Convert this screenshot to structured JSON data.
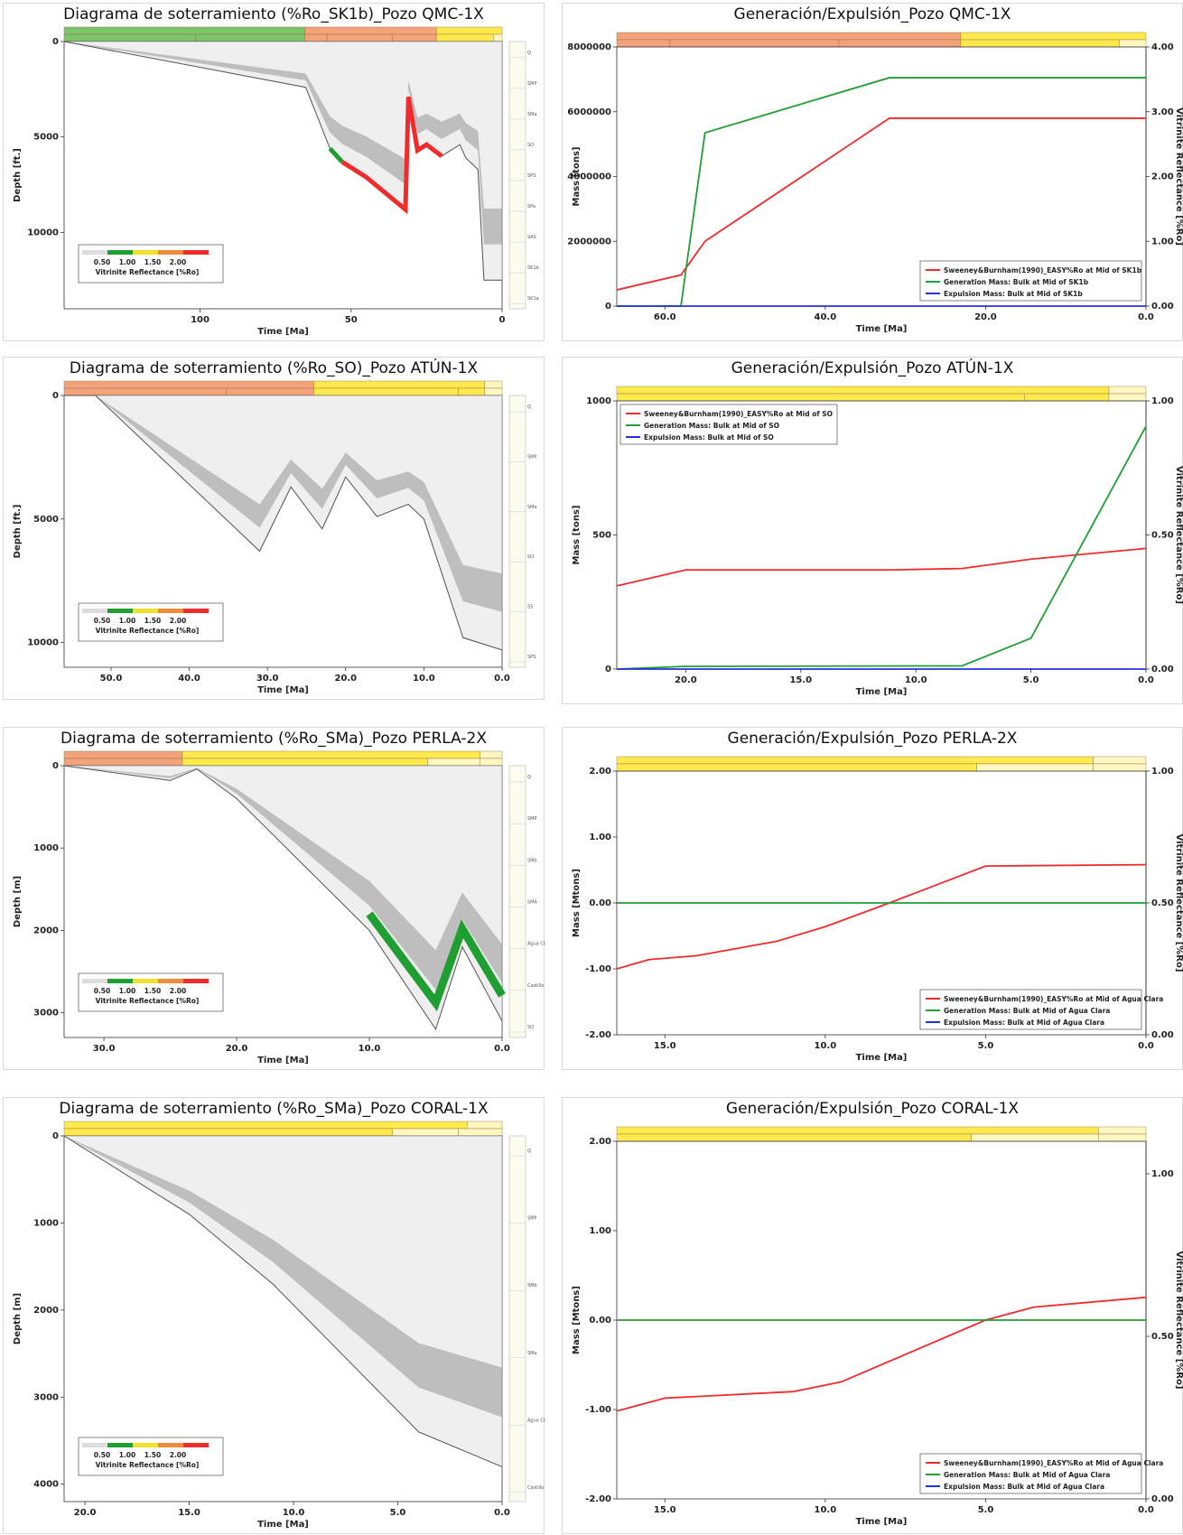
{
  "colors": {
    "paleogene": "#f4a27a",
    "neogene": "#ffe94d",
    "quaternary": "#fff7c2",
    "cretaceous": "#7bc46a",
    "red": "#ef2b2b",
    "green": "#1f9e32",
    "blue": "#2233dd",
    "grey_fill": "#d8d8d8",
    "dark_fill": "#8d8d8d",
    "light_fill": "#efefef"
  },
  "panels": [
    {
      "id": "burial-qmc",
      "kind": "burial",
      "title": "Diagrama de soterramiento (%Ro_SK1b)_Pozo QMC-1X",
      "ylabel": "Depth [ft.]",
      "xlabel": "Time [Ma]",
      "ticks_x": [
        "100",
        "50",
        "0"
      ],
      "ticks_y": [
        "0",
        "5000",
        "10000"
      ],
      "legend_values": [
        "0.50",
        "1.00",
        "1.50",
        "2.00"
      ],
      "legend_title": "Vitrinite Reflectance [%Ro]",
      "formations": [
        "Q",
        "SMP",
        "SMa",
        "SO",
        "SPS",
        "SPa",
        "SAS",
        "SK1b",
        "SK1a"
      ],
      "chart_data": {
        "type": "area",
        "title": "Diagrama de soterramiento (%Ro_SK1b)_Pozo QMC-1X",
        "xlabel": "Time [Ma]",
        "ylabel": "Depth [ft.]",
        "xlim": [
          145,
          0
        ],
        "ylim": [
          0,
          14000
        ],
        "series": [
          {
            "values": [
              [
                145,
                0
              ],
              [
                65,
                2400
              ],
              [
                57,
                5600
              ],
              [
                53,
                6300
              ],
              [
                45,
                7100
              ],
              [
                32,
                8800
              ],
              [
                31,
                2900
              ],
              [
                28,
                5700
              ],
              [
                25,
                5400
              ],
              [
                20,
                6000
              ],
              [
                14,
                5400
              ],
              [
                12,
                6100
              ],
              [
                8,
                6700
              ],
              [
                6,
                12500
              ],
              [
                0,
                12500
              ]
            ]
          }
        ]
      }
    },
    {
      "id": "gen-qmc",
      "kind": "generation",
      "title": "Generación/Expulsión_Pozo QMC-1X",
      "ylabel": "Mass [tons]",
      "y2label": "Vitrinite Reflectance [%Ro]",
      "xlabel": "Time [Ma]",
      "ticks_x": [
        "60.0",
        "40.0",
        "20.0",
        "0.0"
      ],
      "ticks_y": [
        "0",
        "2000000",
        "4000000",
        "6000000",
        "8000000"
      ],
      "ticks_y2": [
        "0.00",
        "1.00",
        "2.00",
        "3.00",
        "4.00"
      ],
      "legend": [
        "Sweeney&Burnham(1990)_EASY%Ro at Mid of SK1b",
        "Generation Mass: Bulk at Mid of SK1b",
        "Expulsion Mass: Bulk at Mid of SK1b"
      ],
      "chart_data": {
        "type": "line",
        "title": "Generación/Expulsión_Pozo QMC-1X",
        "xlabel": "Time [Ma]",
        "ylabel": "Mass [tons]",
        "xlim": [
          66,
          0
        ],
        "ylim": [
          0,
          8000000
        ],
        "y2lim": [
          0,
          4
        ],
        "series": [
          {
            "name": "Sweeney&Burnham(1990)_EASY%Ro at Mid of SK1b",
            "axis": "y2",
            "x": [
              66,
              58,
              55,
              32,
              0
            ],
            "values": [
              0.25,
              0.48,
              1.0,
              2.9,
              2.9
            ]
          },
          {
            "name": "Generation Mass: Bulk at Mid of SK1b",
            "axis": "y",
            "x": [
              66,
              58,
              55,
              32,
              0
            ],
            "values": [
              0,
              0,
              5350000,
              7050000,
              7050000
            ]
          },
          {
            "name": "Expulsion Mass: Bulk at Mid of SK1b",
            "axis": "y",
            "x": [
              66,
              0
            ],
            "values": [
              0,
              0
            ]
          }
        ]
      }
    },
    {
      "id": "burial-atun",
      "kind": "burial",
      "title": "Diagrama de soterramiento (%Ro_SO)_Pozo ATÚN-1X",
      "ylabel": "Depth [ft.]",
      "xlabel": "Time [Ma]",
      "ticks_x": [
        "50.0",
        "40.0",
        "30.0",
        "20.0",
        "10.0",
        "0.0"
      ],
      "ticks_y": [
        "0",
        "5000",
        "10000"
      ],
      "legend_values": [
        "0.50",
        "1.00",
        "1.50",
        "2.00"
      ],
      "legend_title": "Vitrinite Reflectance [%Ro]",
      "formations": [
        "Q",
        "SMP",
        "SMa",
        "SO",
        "SS",
        "SPS"
      ],
      "chart_data": {
        "type": "area",
        "title": "Diagrama de soterramiento (%Ro_SO)_Pozo ATÚN-1X",
        "xlabel": "Time [Ma]",
        "ylabel": "Depth [ft.]",
        "xlim": [
          56,
          0
        ],
        "ylim": [
          0,
          11000
        ],
        "series": [
          {
            "values": [
              [
                52,
                0
              ],
              [
                31,
                6300
              ],
              [
                27,
                3700
              ],
              [
                23,
                5400
              ],
              [
                20,
                3300
              ],
              [
                16,
                4900
              ],
              [
                12,
                4400
              ],
              [
                10,
                5000
              ],
              [
                5,
                9800
              ],
              [
                0,
                10300
              ]
            ]
          }
        ]
      }
    },
    {
      "id": "gen-atun",
      "kind": "generation",
      "title": "Generación/Expulsión_Pozo ATÚN-1X",
      "ylabel": "Mass [tons]",
      "y2label": "Vitrinite Reflectance [%Ro]",
      "xlabel": "Time [Ma]",
      "ticks_x": [
        "20.0",
        "15.0",
        "10.0",
        "5.0",
        "0.0"
      ],
      "ticks_y": [
        "0",
        "500",
        "1000"
      ],
      "ticks_y2": [
        "0.00",
        "0.50",
        "1.00"
      ],
      "legend": [
        "Sweeney&Burnham(1990)_EASY%Ro at Mid of SO",
        "Generation Mass: Bulk at Mid of SO",
        "Expulsion Mass: Bulk at Mid of SO"
      ],
      "chart_data": {
        "type": "line",
        "title": "Generación/Expulsión_Pozo ATÚN-1X",
        "xlabel": "Time [Ma]",
        "ylabel": "Mass [tons]",
        "xlim": [
          23,
          0
        ],
        "ylim": [
          0,
          1000
        ],
        "y2lim": [
          0,
          1
        ],
        "series": [
          {
            "name": "Sweeney&Burnham(1990)_EASY%Ro at Mid of SO",
            "axis": "y2",
            "x": [
              23,
              20,
              17,
              11,
              8,
              5,
              0
            ],
            "values": [
              0.31,
              0.37,
              0.37,
              0.37,
              0.375,
              0.41,
              0.45
            ]
          },
          {
            "name": "Generation Mass: Bulk at Mid of SO",
            "axis": "y",
            "x": [
              23,
              20,
              8,
              5,
              0
            ],
            "values": [
              0,
              10,
              12,
              115,
              905
            ]
          },
          {
            "name": "Expulsion Mass: Bulk at Mid of SO",
            "axis": "y",
            "x": [
              23,
              0
            ],
            "values": [
              0,
              0
            ]
          }
        ]
      }
    },
    {
      "id": "burial-perla",
      "kind": "burial",
      "title": "Diagrama de soterramiento (%Ro_SMa)_Pozo PERLA-2X",
      "ylabel": "Depth [m]",
      "xlabel": "Time [Ma]",
      "ticks_x": [
        "30.0",
        "20.0",
        "10.0",
        "0.0"
      ],
      "ticks_y": [
        "0",
        "1000",
        "2000",
        "3000"
      ],
      "legend_values": [
        "0.50",
        "1.00",
        "1.50",
        "2.00"
      ],
      "legend_title": "Vitrinite Reflectance [%Ro]",
      "formations": [
        "Q",
        "SMP",
        "SMb",
        "SMA",
        "Agua Clara",
        "Castillo del Perla",
        "SO"
      ],
      "chart_data": {
        "type": "area",
        "title": "Diagrama de soterramiento (%Ro_SMa)_Pozo PERLA-2X",
        "xlabel": "Time [Ma]",
        "ylabel": "Depth [m]",
        "xlim": [
          33,
          0
        ],
        "ylim": [
          0,
          3300
        ],
        "series": [
          {
            "values": [
              [
                33,
                0
              ],
              [
                25,
                180
              ],
              [
                23,
                40
              ],
              [
                20,
                400
              ],
              [
                10,
                2000
              ],
              [
                5,
                3200
              ],
              [
                3,
                2200
              ],
              [
                0,
                3100
              ]
            ]
          }
        ]
      }
    },
    {
      "id": "gen-perla",
      "kind": "generation",
      "title": "Generación/Expulsión_Pozo PERLA-2X",
      "ylabel": "Mass [Mtons]",
      "y2label": "Vitrinite Reflectance [%Ro]",
      "xlabel": "Time [Ma]",
      "ticks_x": [
        "15.0",
        "10.0",
        "5.0",
        "0.0"
      ],
      "ticks_y": [
        "-2.00",
        "-1.00",
        "0.00",
        "1.00",
        "2.00"
      ],
      "ticks_y2": [
        "0.00",
        "0.50",
        "1.00"
      ],
      "legend": [
        "Sweeney&Burnham(1990)_EASY%Ro at Mid of Agua Clara",
        "Generation Mass: Bulk at Mid of Agua Clara",
        "Expulsion Mass: Bulk at Mid of Agua Clara"
      ],
      "chart_data": {
        "type": "line",
        "title": "Generación/Expulsión_Pozo PERLA-2X",
        "xlabel": "Time [Ma]",
        "ylabel": "Mass [Mtons]",
        "xlim": [
          16.5,
          0
        ],
        "ylim": [
          -2,
          2
        ],
        "y2lim": [
          0,
          1
        ],
        "series": [
          {
            "name": "Sweeney&Burnham(1990)_EASY%Ro at Mid of Agua Clara",
            "axis": "y2",
            "x": [
              16.5,
              15.5,
              14,
              11.5,
              10,
              8,
              5,
              0
            ],
            "values": [
              0.25,
              0.285,
              0.3,
              0.355,
              0.41,
              0.5,
              0.64,
              0.645
            ]
          },
          {
            "name": "Generation Mass: Bulk at Mid of Agua Clara",
            "axis": "y",
            "x": [
              16.5,
              0
            ],
            "values": [
              0,
              0
            ]
          }
        ]
      }
    },
    {
      "id": "burial-coral",
      "kind": "burial",
      "title": "Diagrama de soterramiento (%Ro_SMa)_Pozo CORAL-1X",
      "ylabel": "Depth [m]",
      "xlabel": "Time [Ma]",
      "ticks_x": [
        "20.0",
        "15.0",
        "10.0",
        "5.0",
        "0.0"
      ],
      "ticks_y": [
        "0",
        "1000",
        "2000",
        "3000",
        "4000"
      ],
      "legend_values": [
        "0.50",
        "1.00",
        "1.50",
        "2.00"
      ],
      "legend_title": "Vitrinite Reflectance [%Ro]",
      "formations": [
        "Q",
        "SMP",
        "SMb",
        "SMa",
        "Agua Clara",
        "Castillo del Perla"
      ],
      "chart_data": {
        "type": "area",
        "title": "Diagrama de soterramiento (%Ro_SMa)_Pozo CORAL-1X",
        "xlabel": "Time [Ma]",
        "ylabel": "Depth [m]",
        "xlim": [
          21,
          0
        ],
        "ylim": [
          0,
          4200
        ],
        "series": [
          {
            "values": [
              [
                21,
                0
              ],
              [
                15,
                900
              ],
              [
                11,
                1700
              ],
              [
                4,
                3400
              ],
              [
                0,
                3800
              ]
            ]
          }
        ]
      }
    },
    {
      "id": "gen-coral",
      "kind": "generation",
      "title": "Generación/Expulsión_Pozo CORAL-1X",
      "ylabel": "Mass [Mtons]",
      "y2label": "Vitrinite Reflectance [%Ro]",
      "xlabel": "Time [Ma]",
      "ticks_x": [
        "15.0",
        "10.0",
        "5.0",
        "0.0"
      ],
      "ticks_y": [
        "-2.00",
        "-1.00",
        "0.00",
        "1.00",
        "2.00"
      ],
      "ticks_y2": [
        "0.00",
        "0.50",
        "1.00"
      ],
      "legend": [
        "Sweeney&Burnham(1990)_EASY%Ro at Mid of Agua Clara",
        "Generation Mass: Bulk at Mid of Agua Clara",
        "Expulsion Mass: Bulk at Mid of Agua Clara"
      ],
      "chart_data": {
        "type": "line",
        "title": "Generación/Expulsión_Pozo CORAL-1X",
        "xlabel": "Time [Ma]",
        "ylabel": "Mass [Mtons]",
        "xlim": [
          16.5,
          0
        ],
        "ylim": [
          -2,
          2
        ],
        "y2lim": [
          0,
          1.1
        ],
        "series": [
          {
            "name": "Sweeney&Burnham(1990)_EASY%Ro at Mid of Agua Clara",
            "axis": "y2",
            "x": [
              16.5,
              15,
              11,
              9.5,
              5,
              3.5,
              0
            ],
            "values": [
              0.27,
              0.31,
              0.33,
              0.36,
              0.55,
              0.59,
              0.62
            ]
          },
          {
            "name": "Generation Mass: Bulk at Mid of Agua Clara",
            "axis": "y",
            "x": [
              16.5,
              0
            ],
            "values": [
              0,
              0
            ]
          }
        ]
      }
    }
  ]
}
